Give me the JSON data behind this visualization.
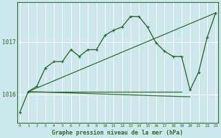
{
  "title": "Graphe pression niveau de la mer (hPa)",
  "bg_color": "#cce8ec",
  "grid_color": "#ffffff",
  "line_color": "#2d6a2d",
  "x_ticks": [
    0,
    1,
    2,
    3,
    4,
    5,
    6,
    7,
    8,
    9,
    10,
    11,
    12,
    13,
    14,
    15,
    16,
    17,
    18,
    19,
    20,
    21,
    22,
    23
  ],
  "ylim": [
    1015.45,
    1017.75
  ],
  "yticks": [
    1016,
    1017
  ],
  "curve_main": {
    "x": [
      0,
      1,
      2,
      3,
      4,
      5,
      6,
      7,
      8,
      9,
      10,
      11,
      12,
      13,
      14,
      15,
      16,
      17,
      18,
      19,
      20,
      21,
      22,
      23
    ],
    "y": [
      1015.65,
      1016.05,
      1016.15,
      1016.5,
      1016.62,
      1016.62,
      1016.85,
      1016.72,
      1016.85,
      1016.85,
      1017.12,
      1017.22,
      1017.28,
      1017.48,
      1017.48,
      1017.28,
      1016.98,
      1016.82,
      1016.72,
      1016.72,
      1016.08,
      1016.42,
      1017.08,
      1017.55
    ]
  },
  "curve_diag": {
    "x": [
      1,
      23
    ],
    "y": [
      1016.05,
      1017.55
    ]
  },
  "curve_flat1": {
    "x": [
      1,
      19
    ],
    "y": [
      1016.05,
      1016.05
    ]
  },
  "curve_flat2": {
    "x": [
      1,
      20
    ],
    "y": [
      1016.05,
      1015.95
    ]
  }
}
